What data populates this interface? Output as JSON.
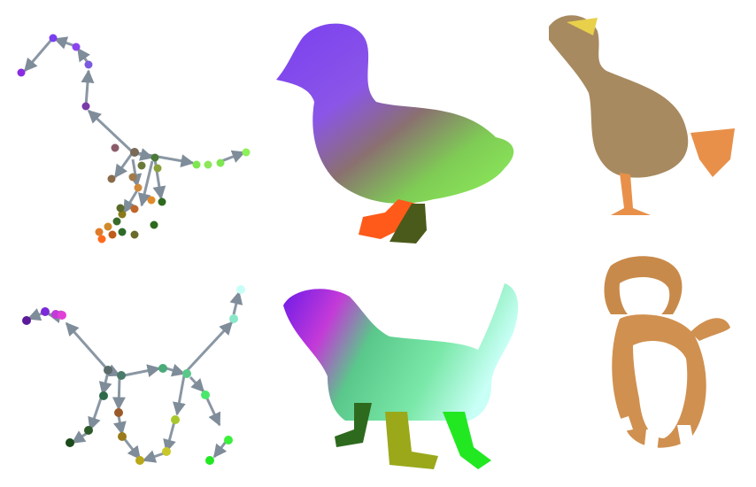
{
  "figure": {
    "rows": [
      {
        "subject": "duck",
        "panels": [
          {
            "kind": "skeleton-graph",
            "icon": "duck-skeleton-icon"
          },
          {
            "kind": "color-coded-silhouette",
            "icon": "duck-silhouette-icon"
          },
          {
            "kind": "photo-cutout",
            "icon": "duck-photo-icon"
          }
        ]
      },
      {
        "subject": "dog",
        "panels": [
          {
            "kind": "skeleton-graph",
            "icon": "dog-skeleton-icon"
          },
          {
            "kind": "color-coded-silhouette",
            "icon": "dog-silhouette-icon"
          },
          {
            "kind": "photo-cutout",
            "icon": "dog-photo-icon"
          }
        ]
      }
    ]
  },
  "colors": {
    "background": "#ffffff",
    "bone": "#7f8c99",
    "purple": "#7a3ff0",
    "green": "#8ee65a",
    "orange": "#ff6a1a",
    "magenta": "#e23fd8",
    "cyan": "#c8fff6",
    "lime": "#33ff33"
  }
}
